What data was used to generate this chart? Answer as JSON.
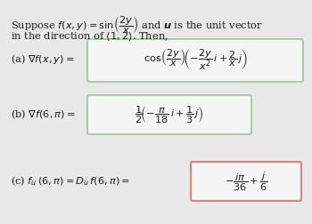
{
  "bg_color": "#e8e8e8",
  "box_color": "#f5f5f5",
  "box_edge_ab": "#a0c8a0",
  "box_edge_c": "#e08080",
  "text_color": "#1a1a1a",
  "title_line1": "Suppose $f(x, y) = \\sin\\!\\left(\\dfrac{2y}{x}\\right)$ and $\\boldsymbol{u}$ is the unit vector",
  "title_line2": "in the direction of $\\langle 1, 2\\rangle$. Then,",
  "label_a": "(a) $\\nabla f(x, y) =$",
  "box_a": "$\\cos\\!\\left(\\dfrac{2y}{x}\\right)\\!\\left(-\\dfrac{2y}{x^2}\\,i+\\dfrac{2}{x}\\,j\\right)$",
  "label_b": "(b) $\\nabla f(6, \\pi) =$",
  "box_b": "$\\dfrac{1}{2}\\!\\left(-\\dfrac{\\pi}{18}\\,i+\\dfrac{1}{3}\\,j\\right)$",
  "label_c": "(c) $f_u\\,(6,\\pi) = D_u\\,f(6,\\pi) =$",
  "box_c": "$-\\dfrac{i\\pi}{36}+\\dfrac{j}{6}$",
  "figsize": [
    3.5,
    2.52
  ],
  "dpi": 100
}
